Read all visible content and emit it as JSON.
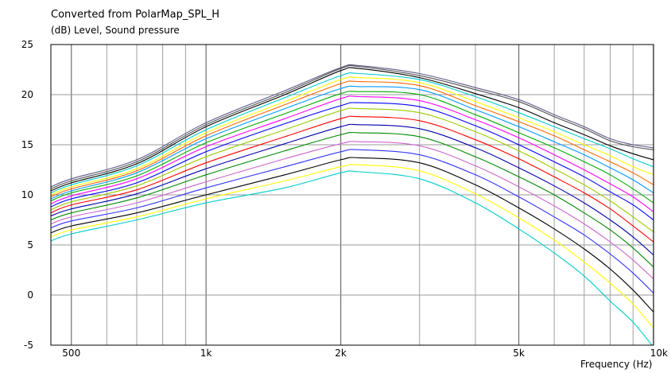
{
  "chart_data": {
    "type": "line",
    "title": "Converted from PolarMap_SPL_H",
    "ylabel": "(dB)  Level, Sound pressure",
    "xlabel": "Frequency  (Hz)",
    "x_scale": "log",
    "xlim": [
      450,
      10000
    ],
    "ylim": [
      -5,
      25
    ],
    "grid": true,
    "y_ticks": [
      -5,
      0,
      5,
      10,
      15,
      20,
      25
    ],
    "x_ticks": [
      {
        "value": 500,
        "label": "500"
      },
      {
        "value": 1000,
        "label": "1k"
      },
      {
        "value": 2000,
        "label": "2k"
      },
      {
        "value": 5000,
        "label": "5k"
      },
      {
        "value": 10000,
        "label": "10k"
      }
    ],
    "x": [
      450,
      500,
      700,
      1000,
      1500,
      2000,
      2200,
      3000,
      4000,
      5000,
      6000,
      7000,
      8000,
      9000,
      10000
    ],
    "series": [
      {
        "color": "#5a5a8a",
        "values": [
          10.8,
          11.6,
          13.5,
          17.2,
          20.4,
          22.7,
          22.9,
          22.1,
          20.7,
          19.5,
          18.0,
          16.8,
          15.6,
          15.0,
          14.7
        ]
      },
      {
        "color": "#505050",
        "values": [
          10.6,
          11.4,
          13.3,
          17.0,
          20.2,
          22.6,
          22.8,
          21.9,
          20.5,
          19.3,
          17.8,
          16.6,
          15.4,
          14.8,
          14.5
        ]
      },
      {
        "color": "#000000",
        "values": [
          10.4,
          11.2,
          13.1,
          16.8,
          20.0,
          22.4,
          22.6,
          21.7,
          20.1,
          18.7,
          17.2,
          16.0,
          14.9,
          14.1,
          13.5
        ]
      },
      {
        "color": "#00cccc",
        "values": [
          10.2,
          11.0,
          12.9,
          16.5,
          19.7,
          21.9,
          22.1,
          21.5,
          19.8,
          18.2,
          16.8,
          15.6,
          14.6,
          13.6,
          12.8
        ]
      },
      {
        "color": "#ffff00",
        "values": [
          10.0,
          10.8,
          12.6,
          16.2,
          19.3,
          21.5,
          21.7,
          21.2,
          19.3,
          17.7,
          16.3,
          15.0,
          13.9,
          12.8,
          12.0
        ]
      },
      {
        "color": "#ff6600",
        "values": [
          9.8,
          10.6,
          12.4,
          15.9,
          19.0,
          21.1,
          21.3,
          20.9,
          18.9,
          17.3,
          15.9,
          14.5,
          13.3,
          12.2,
          11.0
        ]
      },
      {
        "color": "#0099ff",
        "values": [
          9.6,
          10.4,
          12.2,
          15.6,
          18.6,
          20.6,
          20.8,
          20.5,
          18.5,
          16.8,
          15.3,
          14.0,
          12.7,
          11.5,
          10.2
        ]
      },
      {
        "color": "#00aa00",
        "values": [
          9.4,
          10.2,
          11.9,
          15.2,
          18.1,
          20.1,
          20.3,
          20.0,
          18.0,
          16.2,
          14.7,
          13.3,
          12.0,
          10.6,
          9.2
        ]
      },
      {
        "color": "#ff00ff",
        "values": [
          9.1,
          9.9,
          11.6,
          14.8,
          17.6,
          19.6,
          19.8,
          19.4,
          17.5,
          15.7,
          14.0,
          12.5,
          11.1,
          9.8,
          8.3
        ]
      },
      {
        "color": "#0000ff",
        "values": [
          8.8,
          9.6,
          11.2,
          14.3,
          17.1,
          18.9,
          19.2,
          18.8,
          16.9,
          15.0,
          13.3,
          11.8,
          10.3,
          9.0,
          7.5
        ]
      },
      {
        "color": "#99cc00",
        "values": [
          8.5,
          9.3,
          10.9,
          13.8,
          16.5,
          18.4,
          18.6,
          18.2,
          16.3,
          14.4,
          12.6,
          11.0,
          9.4,
          7.8,
          6.3
        ]
      },
      {
        "color": "#ff0000",
        "values": [
          8.2,
          9.0,
          10.5,
          13.2,
          15.8,
          17.6,
          17.8,
          17.4,
          15.5,
          13.6,
          11.8,
          10.2,
          8.6,
          6.9,
          5.3
        ]
      },
      {
        "color": "#0000aa",
        "values": [
          7.9,
          8.6,
          10.1,
          12.6,
          15.1,
          16.8,
          17.0,
          16.6,
          14.7,
          12.7,
          10.9,
          9.2,
          7.5,
          5.8,
          4.0
        ]
      },
      {
        "color": "#008800",
        "values": [
          7.5,
          8.2,
          9.7,
          12.0,
          14.4,
          16.0,
          16.2,
          15.8,
          13.8,
          11.8,
          10.0,
          8.2,
          6.5,
          4.7,
          2.8
        ]
      },
      {
        "color": "#cc66cc",
        "values": [
          7.1,
          7.8,
          9.2,
          11.3,
          13.6,
          15.1,
          15.3,
          14.9,
          12.9,
          10.8,
          8.9,
          7.1,
          5.3,
          3.5,
          1.6
        ]
      },
      {
        "color": "#3333ff",
        "values": [
          6.7,
          7.4,
          8.7,
          10.7,
          12.8,
          14.3,
          14.5,
          14.0,
          12.0,
          9.8,
          7.8,
          6.0,
          4.1,
          2.2,
          0.2
        ]
      },
      {
        "color": "#000000",
        "values": [
          6.2,
          6.9,
          8.2,
          10.0,
          12.0,
          13.5,
          13.7,
          13.2,
          11.0,
          8.7,
          6.6,
          4.6,
          2.6,
          0.5,
          -1.7
        ]
      },
      {
        "color": "#ffff00",
        "values": [
          5.8,
          6.5,
          7.8,
          9.6,
          11.4,
          12.8,
          13.0,
          12.4,
          10.1,
          7.7,
          5.5,
          3.3,
          1.2,
          -0.9,
          -3.3
        ]
      },
      {
        "color": "#00cccc",
        "values": [
          5.4,
          6.1,
          7.5,
          9.2,
          10.7,
          12.2,
          12.3,
          11.6,
          9.2,
          6.6,
          4.2,
          1.9,
          -0.6,
          -2.7,
          -5.2
        ]
      }
    ]
  }
}
